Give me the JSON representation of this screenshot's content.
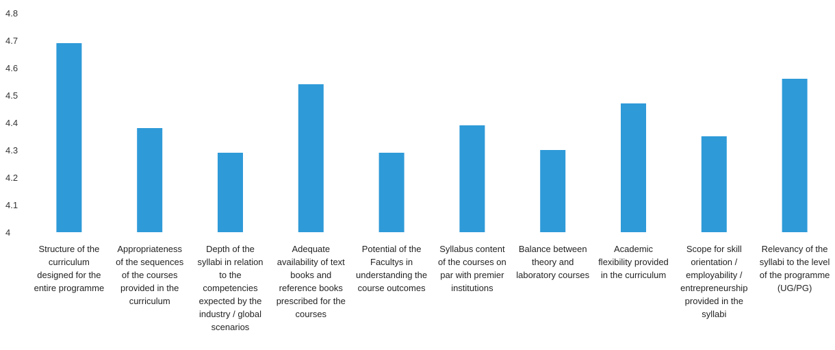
{
  "chart_data": {
    "type": "bar",
    "title": "",
    "xlabel": "",
    "ylabel": "",
    "ylim": [
      4,
      4.8
    ],
    "yticks": [
      "4",
      "4.1",
      "4.2",
      "4.3",
      "4.4",
      "4.5",
      "4.6",
      "4.7",
      "4.8"
    ],
    "grid": false,
    "bar_color": "#2e9ad8",
    "categories": [
      [
        "Structure of the",
        "curriculum",
        "designed for the",
        "entire programme"
      ],
      [
        "Appropriateness",
        "of the sequences",
        "of the courses",
        "provided in the",
        "curriculum"
      ],
      [
        "Depth of the",
        "syllabi in relation",
        "to the",
        "competencies",
        "expected by the",
        "industry / global",
        "scenarios"
      ],
      [
        "Adequate",
        "availability of text",
        "books and",
        "reference books",
        "prescribed for the",
        "courses"
      ],
      [
        "Potential of the",
        "Facultys in",
        "understanding the",
        "course outcomes"
      ],
      [
        "Syllabus content",
        "of the courses on",
        "par with premier",
        "institutions"
      ],
      [
        "Balance between",
        "theory and",
        "laboratory courses"
      ],
      [
        "Academic",
        "flexibility provided",
        "in the curriculum"
      ],
      [
        "Scope for skill",
        "orientation /",
        "employability /",
        "entrepreneurship",
        "provided in the",
        "syllabi"
      ],
      [
        "Relevancy of the",
        "syllabi to the level",
        "of the programme",
        "(UG/PG)"
      ]
    ],
    "values": [
      4.69,
      4.38,
      4.29,
      4.54,
      4.29,
      4.39,
      4.3,
      4.47,
      4.35,
      4.56
    ]
  }
}
